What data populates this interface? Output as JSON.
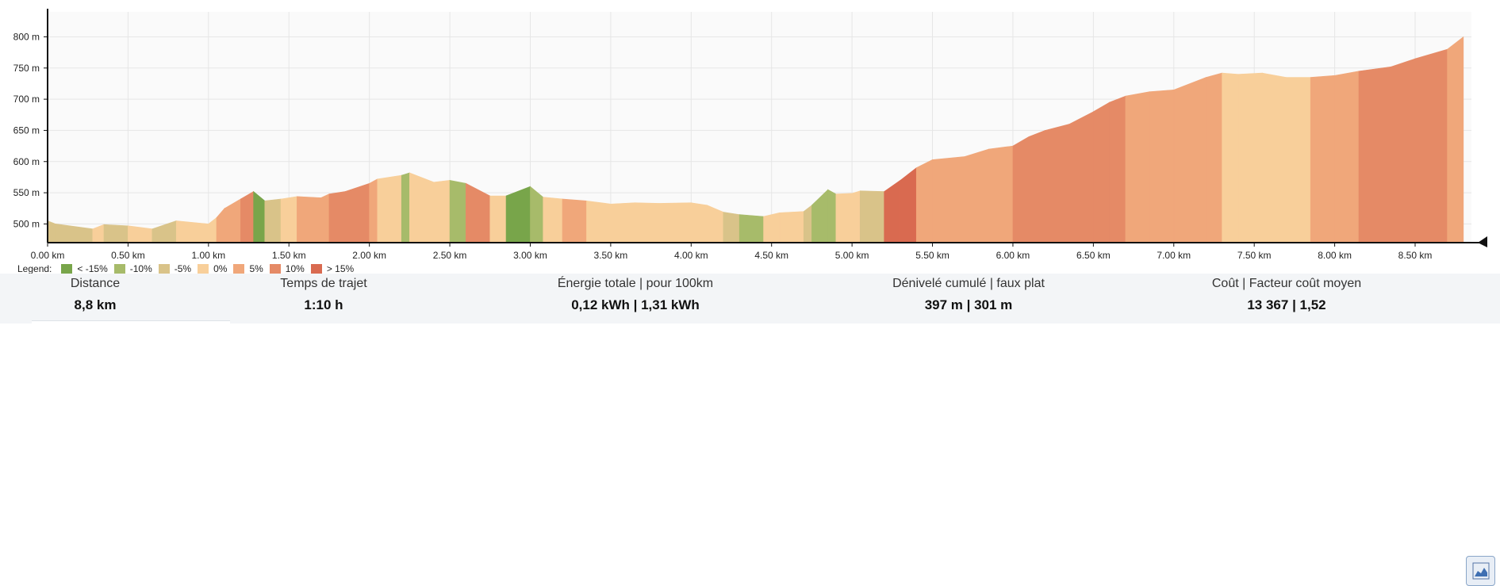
{
  "chart_data": {
    "type": "area",
    "title": "",
    "xlabel": "",
    "ylabel": "",
    "xlim": [
      0,
      8.85
    ],
    "ylim": [
      470,
      840
    ],
    "x_ticks": [
      "0.00 km",
      "0.50 km",
      "1.00 km",
      "1.50 km",
      "2.00 km",
      "2.50 km",
      "3.00 km",
      "3.50 km",
      "4.00 km",
      "4.50 km",
      "5.00 km",
      "5.50 km",
      "6.00 km",
      "6.50 km",
      "7.00 km",
      "7.50 km",
      "8.00 km",
      "8.50 km"
    ],
    "y_ticks": [
      "500 m",
      "550 m",
      "600 m",
      "650 m",
      "700 m",
      "750 m",
      "800 m"
    ],
    "y_tick_values": [
      500,
      550,
      600,
      650,
      700,
      750,
      800
    ],
    "x_tick_values": [
      0,
      0.5,
      1,
      1.5,
      2,
      2.5,
      3,
      3.5,
      4,
      4.5,
      5,
      5.5,
      6,
      6.5,
      7,
      7.5,
      8,
      8.5
    ],
    "grid": true,
    "x": [
      0,
      0.05,
      0.28,
      0.35,
      0.5,
      0.65,
      0.8,
      1.0,
      1.05,
      1.1,
      1.2,
      1.28,
      1.35,
      1.45,
      1.55,
      1.7,
      1.75,
      1.85,
      2.0,
      2.05,
      2.2,
      2.25,
      2.4,
      2.5,
      2.6,
      2.75,
      2.85,
      3.0,
      3.08,
      3.2,
      3.35,
      3.5,
      3.65,
      3.8,
      4.0,
      4.1,
      4.2,
      4.3,
      4.45,
      4.55,
      4.7,
      4.75,
      4.85,
      4.9,
      5.0,
      5.05,
      5.2,
      5.3,
      5.4,
      5.5,
      5.7,
      5.85,
      6.0,
      6.1,
      6.2,
      6.35,
      6.5,
      6.6,
      6.7,
      6.85,
      7.0,
      7.2,
      7.3,
      7.4,
      7.55,
      7.7,
      7.85,
      8.0,
      8.15,
      8.35,
      8.5,
      8.7,
      8.8
    ],
    "y": [
      505,
      500,
      492,
      499,
      497,
      492,
      505,
      500,
      510,
      525,
      540,
      552,
      537,
      540,
      544,
      542,
      548,
      552,
      565,
      572,
      578,
      582,
      567,
      570,
      565,
      545,
      545,
      560,
      543,
      540,
      537,
      532,
      534,
      533,
      534,
      530,
      519,
      515,
      512,
      518,
      520,
      530,
      555,
      548,
      549,
      553,
      552,
      570,
      590,
      603,
      608,
      620,
      625,
      640,
      650,
      660,
      680,
      695,
      705,
      712,
      715,
      735,
      742,
      740,
      742,
      735,
      735,
      738,
      745,
      752,
      765,
      780,
      800
    ],
    "series_colors": [
      "#78a54a",
      "#a7bb6a",
      "#d9c389",
      "#f8cf9a",
      "#f0a77a",
      "#e58a66",
      "#d96a50"
    ],
    "gradient_classes": [
      2,
      2,
      3,
      2,
      3,
      2,
      3,
      3,
      4,
      4,
      5,
      0,
      2,
      3,
      4,
      4,
      5,
      5,
      4,
      3,
      1,
      3,
      3,
      1,
      5,
      3,
      0,
      1,
      3,
      4,
      3,
      3,
      3,
      3,
      3,
      3,
      2,
      1,
      3,
      3,
      2,
      1,
      1,
      3,
      3,
      2,
      6,
      6,
      4,
      4,
      4,
      4,
      5,
      5,
      5,
      5,
      5,
      5,
      4,
      4,
      4,
      4,
      3,
      3,
      3,
      3,
      4,
      4,
      5,
      5,
      5,
      4
    ]
  },
  "legend": {
    "title": "Legend:",
    "items": [
      {
        "label": "< -15%",
        "color": "#78a54a"
      },
      {
        "label": "-10%",
        "color": "#a7bb6a"
      },
      {
        "label": "-5%",
        "color": "#d9c389"
      },
      {
        "label": "0%",
        "color": "#f8cf9a"
      },
      {
        "label": "5%",
        "color": "#f0a77a"
      },
      {
        "label": "10%",
        "color": "#e58a66"
      },
      {
        "label": "> 15%",
        "color": "#d96a50"
      }
    ]
  },
  "stats": {
    "distance": {
      "label": "Distance",
      "value": "8,8 km"
    },
    "trip_time": {
      "label": "Temps de trajet",
      "value": "1:10 h"
    },
    "energy": {
      "label": "Énergie totale | pour 100km",
      "value": "0,12 kWh | 1,31 kWh"
    },
    "elevation": {
      "label": "Dénivelé cumulé | faux plat",
      "value": "397 m | 301 m"
    },
    "cost": {
      "label": "Coût | Facteur coût moyen",
      "value": "13 367 | 1,52"
    }
  },
  "toggle_icon": "area-chart-icon"
}
